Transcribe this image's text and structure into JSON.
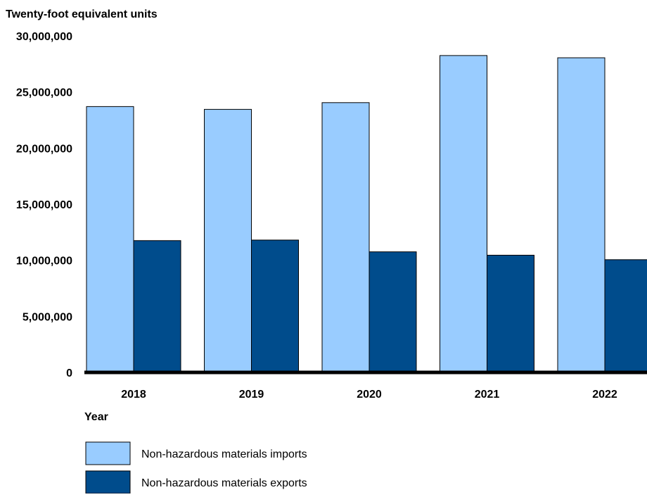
{
  "chart_data": {
    "type": "bar",
    "ylabel": "Twenty-foot equivalent units",
    "xlabel": "Year",
    "categories": [
      "2018",
      "2019",
      "2020",
      "2021",
      "2022"
    ],
    "series": [
      {
        "name": "Non-hazardous materials imports",
        "color": "#99ccff",
        "values": [
          23700000,
          23450000,
          24050000,
          28250000,
          28050000
        ]
      },
      {
        "name": "Non-hazardous materials exports",
        "color": "#004c8c",
        "values": [
          11750000,
          11800000,
          10750000,
          10450000,
          10050000
        ]
      }
    ],
    "ylim": [
      0,
      30000000
    ],
    "yticks": [
      "0",
      "5,000,000",
      "10,000,000",
      "15,000,000",
      "20,000,000",
      "25,000,000",
      "30,000,000"
    ],
    "ytick_values": [
      0,
      5000000,
      10000000,
      15000000,
      20000000,
      25000000,
      30000000
    ],
    "grid": false,
    "legend_position": "bottom-left"
  }
}
